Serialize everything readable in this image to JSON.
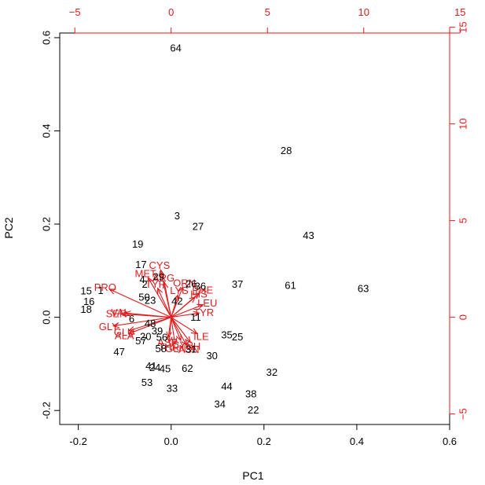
{
  "chart_data": {
    "type": "scatter",
    "subtype": "pca-biplot",
    "xlabel": "PC1",
    "ylabel": "PC2",
    "xlim": [
      -0.24,
      0.6
    ],
    "ylim": [
      -0.23,
      0.61
    ],
    "xticks": [
      -0.2,
      0.0,
      0.2,
      0.4,
      0.6
    ],
    "yticks": [
      -0.2,
      0.0,
      0.2,
      0.4,
      0.6
    ],
    "top_xticks": [
      -5,
      0,
      5,
      10,
      15
    ],
    "right_yticks": [
      -5,
      0,
      5,
      10,
      15
    ],
    "loading_scale": 0.0415,
    "observation_color": "#000000",
    "loading_color": "#e41a1c",
    "observations": [
      {
        "label": "64",
        "x": 0.01,
        "y": 0.578
      },
      {
        "label": "28",
        "x": 0.248,
        "y": 0.358
      },
      {
        "label": "3",
        "x": 0.013,
        "y": 0.218
      },
      {
        "label": "27",
        "x": 0.058,
        "y": 0.195
      },
      {
        "label": "43",
        "x": 0.296,
        "y": 0.176
      },
      {
        "label": "19",
        "x": -0.072,
        "y": 0.157
      },
      {
        "label": "17",
        "x": -0.065,
        "y": 0.113
      },
      {
        "label": "29",
        "x": -0.027,
        "y": 0.087
      },
      {
        "label": "4",
        "x": -0.062,
        "y": 0.081
      },
      {
        "label": "2",
        "x": -0.057,
        "y": 0.071
      },
      {
        "label": "61",
        "x": 0.257,
        "y": 0.069
      },
      {
        "label": "63",
        "x": 0.414,
        "y": 0.062
      },
      {
        "label": "37",
        "x": 0.143,
        "y": 0.071
      },
      {
        "label": "26",
        "x": 0.043,
        "y": 0.072
      },
      {
        "label": "36",
        "x": 0.063,
        "y": 0.067
      },
      {
        "label": "15",
        "x": -0.183,
        "y": 0.057
      },
      {
        "label": "1",
        "x": -0.152,
        "y": 0.058
      },
      {
        "label": "50",
        "x": -0.058,
        "y": 0.043
      },
      {
        "label": "23",
        "x": -0.045,
        "y": 0.037
      },
      {
        "label": "42",
        "x": 0.013,
        "y": 0.035
      },
      {
        "label": "16",
        "x": -0.177,
        "y": 0.034
      },
      {
        "label": "18",
        "x": -0.183,
        "y": 0.017
      },
      {
        "label": "11",
        "x": 0.053,
        "y": 0.0
      },
      {
        "label": "6",
        "x": -0.085,
        "y": -0.003
      },
      {
        "label": "48",
        "x": -0.045,
        "y": -0.013
      },
      {
        "label": "39",
        "x": -0.03,
        "y": -0.029
      },
      {
        "label": "20",
        "x": -0.055,
        "y": -0.041
      },
      {
        "label": "57",
        "x": -0.065,
        "y": -0.05
      },
      {
        "label": "56",
        "x": -0.02,
        "y": -0.043
      },
      {
        "label": "35",
        "x": 0.12,
        "y": -0.038
      },
      {
        "label": "25",
        "x": 0.143,
        "y": -0.042
      },
      {
        "label": "47",
        "x": -0.112,
        "y": -0.074
      },
      {
        "label": "58",
        "x": -0.022,
        "y": -0.067
      },
      {
        "label": "31",
        "x": 0.043,
        "y": -0.068
      },
      {
        "label": "30",
        "x": 0.088,
        "y": -0.082
      },
      {
        "label": "62",
        "x": 0.035,
        "y": -0.109
      },
      {
        "label": "41",
        "x": -0.043,
        "y": -0.104
      },
      {
        "label": "24",
        "x": -0.035,
        "y": -0.108
      },
      {
        "label": "45",
        "x": -0.013,
        "y": -0.11
      },
      {
        "label": "32",
        "x": 0.217,
        "y": -0.118
      },
      {
        "label": "53",
        "x": -0.052,
        "y": -0.14
      },
      {
        "label": "33",
        "x": 0.002,
        "y": -0.152
      },
      {
        "label": "44",
        "x": 0.12,
        "y": -0.148
      },
      {
        "label": "38",
        "x": 0.172,
        "y": -0.164
      },
      {
        "label": "34",
        "x": 0.105,
        "y": -0.186
      },
      {
        "label": "22",
        "x": 0.177,
        "y": -0.199
      }
    ],
    "loadings": [
      {
        "label": "PRO",
        "x": -3.2,
        "y": 1.45
      },
      {
        "label": "CYS",
        "x": -0.55,
        "y": 2.45
      },
      {
        "label": "MET",
        "x": -1.2,
        "y": 2.05
      },
      {
        "label": "ARG",
        "x": -0.35,
        "y": 1.8
      },
      {
        "label": "TYR",
        "x": -0.7,
        "y": 1.5
      },
      {
        "label": "ORN",
        "x": 0.6,
        "y": 1.55
      },
      {
        "label": "PHE",
        "x": 1.45,
        "y": 1.25
      },
      {
        "label": "HIS",
        "x": 1.25,
        "y": 1.05
      },
      {
        "label": "LYS",
        "x": 0.35,
        "y": 1.15
      },
      {
        "label": "LEU",
        "x": 1.65,
        "y": 0.65
      },
      {
        "label": "TYR",
        "x": 1.45,
        "y": 0.22
      },
      {
        "label": "VAL",
        "x": -2.4,
        "y": 0.22
      },
      {
        "label": "SER",
        "x": -2.6,
        "y": 0.18
      },
      {
        "label": "ILE",
        "x": 1.35,
        "y": -0.85
      },
      {
        "label": "GLY",
        "x": -3.0,
        "y": -0.45
      },
      {
        "label": "GLU",
        "x": -2.2,
        "y": -0.7
      },
      {
        "label": "ALA",
        "x": -2.2,
        "y": -0.85
      },
      {
        "label": "ASP",
        "x": -0.15,
        "y": -1.05
      },
      {
        "label": "THR",
        "x": -0.1,
        "y": -1.3
      },
      {
        "label": "GLN",
        "x": 0.2,
        "y": -1.38
      },
      {
        "label": "ASN",
        "x": 0.8,
        "y": -1.45
      },
      {
        "label": "NH",
        "x": 1.0,
        "y": -1.3
      },
      {
        "label": "CYS",
        "x": 0.5,
        "y": -1.2
      }
    ]
  }
}
